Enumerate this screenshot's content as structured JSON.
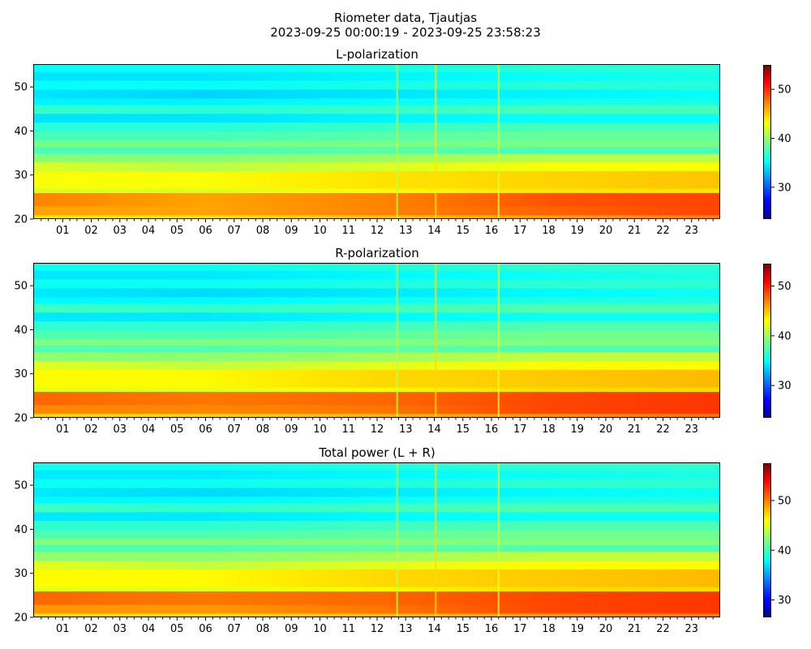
{
  "figure": {
    "title_line1": "Riometer data, Tjautjas",
    "title_line2": "2023-09-25 00:00:19 - 2023-09-25 23:58:23"
  },
  "chart_data": [
    {
      "type": "heatmap",
      "title": "L-polarization",
      "x_range_hours": [
        0,
        24
      ],
      "x_ticklabels": [
        "01",
        "02",
        "03",
        "04",
        "05",
        "06",
        "07",
        "08",
        "09",
        "10",
        "11",
        "12",
        "13",
        "14",
        "15",
        "16",
        "17",
        "18",
        "19",
        "20",
        "21",
        "22",
        "23"
      ],
      "y_range": [
        20,
        55
      ],
      "y_ticks": [
        20,
        30,
        40,
        50
      ],
      "colorbar": {
        "range": [
          23.5,
          55
        ],
        "ticks": [
          30,
          40,
          50
        ],
        "colormap": "jet"
      },
      "rows": [
        {
          "y": [
            20,
            21
          ],
          "values": [
            44,
            44,
            45,
            46,
            47
          ]
        },
        {
          "y": [
            21,
            23
          ],
          "values": [
            46,
            46,
            47,
            48,
            49
          ]
        },
        {
          "y": [
            23,
            26
          ],
          "values": [
            47,
            46,
            47,
            48.5,
            49
          ]
        },
        {
          "y": [
            26,
            27
          ],
          "values": [
            42,
            42,
            43,
            44,
            44
          ]
        },
        {
          "y": [
            27,
            31
          ],
          "values": [
            43,
            43,
            44,
            44.5,
            45
          ]
        },
        {
          "y": [
            31,
            33
          ],
          "values": [
            42,
            41,
            42,
            43,
            43
          ]
        },
        {
          "y": [
            33,
            35
          ],
          "values": [
            39.5,
            39.5,
            40,
            41,
            41
          ]
        },
        {
          "y": [
            35,
            36.5
          ],
          "values": [
            37.5,
            37.5,
            38,
            37.5,
            37.5
          ]
        },
        {
          "y": [
            36.5,
            38
          ],
          "values": [
            39,
            39,
            39,
            39,
            39
          ]
        },
        {
          "y": [
            38,
            40
          ],
          "values": [
            37.5,
            37.5,
            38,
            38.5,
            38.5
          ]
        },
        {
          "y": [
            40,
            42
          ],
          "values": [
            36.5,
            36.5,
            37,
            37.5,
            37.5
          ]
        },
        {
          "y": [
            42,
            44
          ],
          "values": [
            34.5,
            34.5,
            35,
            35.5,
            35.5
          ]
        },
        {
          "y": [
            44,
            46
          ],
          "values": [
            37,
            36.5,
            37,
            37.5,
            37.5
          ]
        },
        {
          "y": [
            46,
            47.5
          ],
          "values": [
            35,
            35,
            35.5,
            36,
            36
          ]
        },
        {
          "y": [
            47.5,
            49.5
          ],
          "values": [
            34.5,
            34,
            34.5,
            35,
            35.5
          ]
        },
        {
          "y": [
            49.5,
            51.5
          ],
          "values": [
            35.5,
            35.5,
            36,
            36.5,
            36.5
          ]
        },
        {
          "y": [
            51.5,
            53.5
          ],
          "values": [
            34.5,
            34.5,
            35,
            35.5,
            36
          ]
        },
        {
          "y": [
            53.5,
            55
          ],
          "values": [
            35.5,
            35.5,
            36,
            36.5,
            36.5
          ]
        }
      ],
      "row_value_hours": [
        0,
        6,
        12,
        18,
        24
      ],
      "vertical_features": [
        {
          "hour": 12.7,
          "value": 41
        },
        {
          "hour": 14.05,
          "value": 44
        },
        {
          "hour": 16.25,
          "value": 42
        }
      ]
    },
    {
      "type": "heatmap",
      "title": "R-polarization",
      "x_range_hours": [
        0,
        24
      ],
      "x_ticklabels": [
        "01",
        "02",
        "03",
        "04",
        "05",
        "06",
        "07",
        "08",
        "09",
        "10",
        "11",
        "12",
        "13",
        "14",
        "15",
        "16",
        "17",
        "18",
        "19",
        "20",
        "21",
        "22",
        "23"
      ],
      "y_range": [
        20,
        55
      ],
      "y_ticks": [
        20,
        30,
        40,
        50
      ],
      "colorbar": {
        "range": [
          23.5,
          54.5
        ],
        "ticks": [
          30,
          40,
          50
        ],
        "colormap": "jet"
      },
      "rows": [
        {
          "y": [
            20,
            21
          ],
          "values": [
            44,
            44,
            45,
            46,
            47
          ]
        },
        {
          "y": [
            21,
            23
          ],
          "values": [
            46.5,
            46.5,
            47,
            48.5,
            49
          ]
        },
        {
          "y": [
            23,
            26
          ],
          "values": [
            47.5,
            47,
            47.5,
            48.5,
            49
          ]
        },
        {
          "y": [
            26,
            27
          ],
          "values": [
            42,
            42,
            43,
            44,
            44
          ]
        },
        {
          "y": [
            27,
            31
          ],
          "values": [
            43,
            43,
            44,
            44.5,
            45
          ]
        },
        {
          "y": [
            31,
            33
          ],
          "values": [
            42,
            41,
            42,
            43,
            43
          ]
        },
        {
          "y": [
            33,
            35
          ],
          "values": [
            39.5,
            39.5,
            40,
            41,
            41
          ]
        },
        {
          "y": [
            35,
            36.5
          ],
          "values": [
            37.5,
            37.5,
            38,
            37.5,
            37.5
          ]
        },
        {
          "y": [
            36.5,
            38
          ],
          "values": [
            39,
            39,
            39,
            39,
            39
          ]
        },
        {
          "y": [
            38,
            40
          ],
          "values": [
            37.5,
            37.5,
            38,
            38.5,
            38.5
          ]
        },
        {
          "y": [
            40,
            42
          ],
          "values": [
            36.5,
            36.5,
            37,
            37.5,
            37.5
          ]
        },
        {
          "y": [
            42,
            44
          ],
          "values": [
            34.5,
            34.5,
            35,
            35.5,
            35.5
          ]
        },
        {
          "y": [
            44,
            46
          ],
          "values": [
            37,
            36.5,
            37,
            37.5,
            37.5
          ]
        },
        {
          "y": [
            46,
            47.5
          ],
          "values": [
            35,
            35,
            35.5,
            36,
            36
          ]
        },
        {
          "y": [
            47.5,
            49.5
          ],
          "values": [
            34.5,
            34,
            34.5,
            35,
            35.5
          ]
        },
        {
          "y": [
            49.5,
            51.5
          ],
          "values": [
            35.5,
            35.5,
            36,
            36.5,
            36.5
          ]
        },
        {
          "y": [
            51.5,
            53.5
          ],
          "values": [
            34.5,
            34.5,
            35,
            35.5,
            36
          ]
        },
        {
          "y": [
            53.5,
            55
          ],
          "values": [
            35.5,
            35.5,
            36,
            36.5,
            36.5
          ]
        }
      ],
      "row_value_hours": [
        0,
        6,
        12,
        18,
        24
      ],
      "vertical_features": [
        {
          "hour": 12.7,
          "value": 41
        },
        {
          "hour": 14.05,
          "value": 44
        },
        {
          "hour": 16.25,
          "value": 42
        }
      ]
    },
    {
      "type": "heatmap",
      "title": "Total power (L + R)",
      "x_range_hours": [
        0,
        24
      ],
      "x_ticklabels": [
        "01",
        "02",
        "03",
        "04",
        "05",
        "06",
        "07",
        "08",
        "09",
        "10",
        "11",
        "12",
        "13",
        "14",
        "15",
        "16",
        "17",
        "18",
        "19",
        "20",
        "21",
        "22",
        "23"
      ],
      "y_range": [
        20,
        55
      ],
      "y_ticks": [
        20,
        30,
        40,
        50
      ],
      "colorbar": {
        "range": [
          26.5,
          57.5
        ],
        "ticks": [
          30,
          40,
          50
        ],
        "colormap": "jet"
      },
      "rows": [
        {
          "y": [
            20,
            21
          ],
          "values": [
            47,
            47,
            48,
            49,
            50
          ]
        },
        {
          "y": [
            21,
            23
          ],
          "values": [
            49,
            49,
            50,
            51.5,
            52
          ]
        },
        {
          "y": [
            23,
            26
          ],
          "values": [
            50.5,
            50,
            50.5,
            51.5,
            52
          ]
        },
        {
          "y": [
            26,
            27
          ],
          "values": [
            45,
            45,
            46,
            47,
            47
          ]
        },
        {
          "y": [
            27,
            31
          ],
          "values": [
            46,
            46,
            47,
            47.5,
            48
          ]
        },
        {
          "y": [
            31,
            33
          ],
          "values": [
            45,
            44,
            45,
            46,
            46
          ]
        },
        {
          "y": [
            33,
            35
          ],
          "values": [
            42.5,
            42.5,
            43,
            44,
            44
          ]
        },
        {
          "y": [
            35,
            36.5
          ],
          "values": [
            40.5,
            40.5,
            41,
            40.5,
            40.5
          ]
        },
        {
          "y": [
            36.5,
            38
          ],
          "values": [
            42,
            42,
            42,
            42,
            42
          ]
        },
        {
          "y": [
            38,
            40
          ],
          "values": [
            40.5,
            40.5,
            41,
            41.5,
            41.5
          ]
        },
        {
          "y": [
            40,
            42
          ],
          "values": [
            39.5,
            39.5,
            40,
            40.5,
            40.5
          ]
        },
        {
          "y": [
            42,
            44
          ],
          "values": [
            37.5,
            37.5,
            38,
            38.5,
            38.5
          ]
        },
        {
          "y": [
            44,
            46
          ],
          "values": [
            40,
            39.5,
            40,
            40.5,
            40.5
          ]
        },
        {
          "y": [
            46,
            47.5
          ],
          "values": [
            38,
            38,
            38.5,
            39,
            39
          ]
        },
        {
          "y": [
            47.5,
            49.5
          ],
          "values": [
            37.5,
            37,
            37.5,
            38,
            38.5
          ]
        },
        {
          "y": [
            49.5,
            51.5
          ],
          "values": [
            38.5,
            38.5,
            39,
            39.5,
            39.5
          ]
        },
        {
          "y": [
            51.5,
            53.5
          ],
          "values": [
            37.5,
            37.5,
            38,
            38.5,
            39
          ]
        },
        {
          "y": [
            53.5,
            55
          ],
          "values": [
            38.5,
            38.5,
            39,
            39.5,
            39.5
          ]
        }
      ],
      "row_value_hours": [
        0,
        6,
        12,
        18,
        24
      ],
      "vertical_features": [
        {
          "hour": 12.7,
          "value": 44
        },
        {
          "hour": 14.05,
          "value": 47
        },
        {
          "hour": 16.25,
          "value": 45
        }
      ]
    }
  ]
}
